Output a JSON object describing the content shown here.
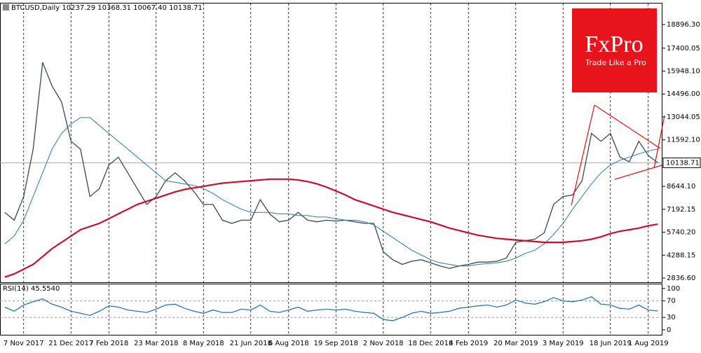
{
  "logo": {
    "brand": "FxPro",
    "tagline": "Trade Like a Pro"
  },
  "chart_data": [
    {
      "type": "line",
      "title": "BTCUSD,Daily  10237.29 10368.31 10067.40 10138.71",
      "categories": [
        null,
        null,
        "7 Nov 2017",
        null,
        null,
        null,
        null,
        "21 Dec 2017",
        null,
        null,
        null,
        "7 Feb 2018",
        null,
        null,
        null,
        null,
        "23 Mar 2018",
        null,
        null,
        null,
        null,
        "8 May 2018",
        null,
        null,
        null,
        null,
        "21 Jun 2018",
        null,
        null,
        null,
        "6 Aug 2018",
        null,
        null,
        null,
        null,
        "19 Sep 2018",
        null,
        null,
        null,
        null,
        "2 Nov 2018",
        null,
        null,
        null,
        null,
        "18 Dec 2018",
        null,
        null,
        null,
        "4 Feb 2019",
        null,
        null,
        null,
        null,
        "20 Mar 2019",
        null,
        null,
        null,
        null,
        "3 May 2019",
        null,
        null,
        null,
        null,
        "18 Jun 2019",
        null,
        null,
        null,
        "1 Aug 2019",
        null
      ],
      "series": [
        {
          "color": "#3a4a4a",
          "values": [
            7000,
            6500,
            8000,
            11000,
            16500,
            15000,
            14000,
            11500,
            11000,
            8000,
            8500,
            10000,
            10500,
            9500,
            8500,
            7500,
            8000,
            9000,
            9500,
            9000,
            8300,
            7500,
            7500,
            6500,
            6300,
            6500,
            6500,
            7800,
            6900,
            6400,
            6500,
            7000,
            6500,
            6400,
            6500,
            6450,
            6500,
            6400,
            6300,
            6300,
            4500,
            4000,
            3700,
            3900,
            4000,
            3800,
            3600,
            3450,
            3600,
            3700,
            3850,
            3850,
            3900,
            4100,
            5100,
            5200,
            5300,
            5700,
            7500,
            8000,
            8100,
            9000,
            12000,
            11500,
            12000,
            10500,
            10200,
            11500,
            10600,
            10138.71
          ]
        },
        {
          "color": "#2a78a8",
          "values": [
            5000,
            5500,
            6500,
            8000,
            9500,
            11000,
            12000,
            12600,
            13000,
            13000,
            12500,
            12000,
            11500,
            11000,
            10500,
            10000,
            9500,
            9000,
            8900,
            8800,
            8700,
            8500,
            8200,
            7800,
            7500,
            7200,
            7000,
            7000,
            7000,
            6900,
            6900,
            6800,
            6800,
            6700,
            6700,
            6600,
            6500,
            6500,
            6400,
            6200,
            5800,
            5400,
            5000,
            4600,
            4300,
            4000,
            3800,
            3700,
            3600,
            3600,
            3700,
            3750,
            3800,
            3900,
            4100,
            4400,
            4600,
            5000,
            5600,
            6300,
            7200,
            8000,
            8800,
            9500,
            10000,
            10300,
            10500,
            10700,
            10900,
            11000
          ]
        },
        {
          "color": "#c8102e",
          "values": [
            2900,
            3100,
            3400,
            3700,
            4200,
            4700,
            5100,
            5500,
            5900,
            6100,
            6300,
            6600,
            6900,
            7200,
            7500,
            7700,
            7900,
            8100,
            8300,
            8450,
            8550,
            8650,
            8750,
            8850,
            8900,
            8950,
            9000,
            9050,
            9100,
            9100,
            9100,
            9050,
            8950,
            8800,
            8600,
            8350,
            8100,
            7800,
            7600,
            7400,
            7200,
            7000,
            6850,
            6700,
            6550,
            6400,
            6200,
            6000,
            5850,
            5700,
            5550,
            5450,
            5350,
            5300,
            5250,
            5200,
            5150,
            5100,
            5100,
            5100,
            5150,
            5200,
            5300,
            5450,
            5650,
            5800,
            5900,
            6000,
            6150,
            6250
          ]
        }
      ],
      "ylim": [
        2570,
        20230
      ],
      "yticks": [
        {
          "value": 2836.6,
          "label": "2836.60"
        },
        {
          "value": 4288.15,
          "label": "4288.15"
        },
        {
          "value": 5740.2,
          "label": "5740.20"
        },
        {
          "value": 7192.15,
          "label": "7192.15"
        },
        {
          "value": 8644.1,
          "label": "8644.10"
        },
        {
          "value": 11592.1,
          "label": "11592.10"
        },
        {
          "value": 13044.05,
          "label": "13044.05"
        },
        {
          "value": 14496,
          "label": "14496.00"
        },
        {
          "value": 15948.1,
          "label": "15948.10"
        },
        {
          "value": 17400.05,
          "label": "17400.05"
        },
        {
          "value": 18896.3,
          "label": "18896.30"
        }
      ],
      "last_value": 10138.71,
      "grid": true
    },
    {
      "type": "line",
      "title": "RSI(14) 45.5540",
      "series": [
        {
          "color": "#2a78a8",
          "values": [
            55,
            45,
            60,
            68,
            75,
            62,
            55,
            45,
            40,
            35,
            45,
            58,
            55,
            48,
            45,
            42,
            50,
            60,
            62,
            52,
            45,
            40,
            48,
            42,
            42,
            50,
            48,
            60,
            45,
            42,
            48,
            55,
            45,
            48,
            50,
            48,
            50,
            45,
            42,
            40,
            25,
            22,
            30,
            40,
            45,
            40,
            42,
            45,
            52,
            55,
            58,
            60,
            55,
            60,
            72,
            65,
            62,
            68,
            78,
            70,
            68,
            72,
            80,
            62,
            60,
            52,
            50,
            60,
            48,
            45.554
          ]
        }
      ],
      "ylim": [
        -12,
        110
      ],
      "yticks": [
        0,
        30,
        70,
        100
      ]
    }
  ]
}
